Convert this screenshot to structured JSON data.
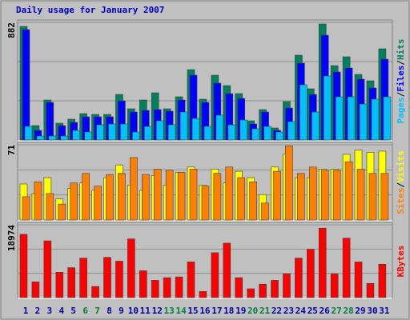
{
  "chart_data": [
    {
      "type": "bar",
      "title": "Daily usage for January 2007",
      "ylim": [
        0,
        882
      ],
      "yticks": [
        882
      ],
      "legend_separator": "/",
      "series": [
        {
          "name": "Pages",
          "color": "#00C0FF",
          "values": [
            102,
            30,
            30,
            30,
            72,
            60,
            114,
            120,
            120,
            60,
            102,
            144,
            114,
            210,
            162,
            102,
            186,
            114,
            150,
            84,
            102,
            60,
            138,
            414,
            210,
            480,
            324,
            324,
            270,
            306,
            324
          ]
        },
        {
          "name": "Files",
          "color": "#0000FF",
          "values": [
            828,
            72,
            282,
            108,
            132,
            174,
            174,
            174,
            294,
            210,
            222,
            228,
            216,
            300,
            486,
            282,
            426,
            348,
            312,
            120,
            210,
            72,
            240,
            576,
            342,
            786,
            510,
            540,
            456,
            390,
            606
          ]
        },
        {
          "name": "Hits",
          "color": "#00805C",
          "values": [
            852,
            108,
            300,
            126,
            156,
            198,
            192,
            192,
            342,
            234,
            300,
            354,
            234,
            324,
            528,
            306,
            486,
            408,
            348,
            144,
            228,
            90,
            288,
            636,
            384,
            870,
            558,
            624,
            492,
            444,
            684
          ]
        }
      ]
    },
    {
      "type": "bar",
      "ylim": [
        0,
        71
      ],
      "yticks": [
        71
      ],
      "legend_separator": "/",
      "series": [
        {
          "name": "Sites",
          "color": "#FF8000",
          "values": [
            22,
            36,
            25,
            15,
            35,
            44,
            32,
            43,
            44,
            59,
            43,
            48,
            47,
            45,
            48,
            32,
            44,
            50,
            40,
            36,
            16,
            46,
            70,
            44,
            50,
            47,
            47,
            55,
            48,
            44,
            44
          ]
        },
        {
          "name": "Visits",
          "color": "#FFFF00",
          "values": [
            34,
            25,
            40,
            20,
            30,
            35,
            28,
            40,
            52,
            33,
            28,
            42,
            33,
            45,
            50,
            33,
            48,
            35,
            46,
            40,
            24,
            50,
            62,
            40,
            40,
            48,
            48,
            62,
            66,
            64,
            65
          ]
        }
      ]
    },
    {
      "type": "bar",
      "ylim": [
        0,
        18974
      ],
      "yticks": [
        18974
      ],
      "categories": [
        "1",
        "2",
        "3",
        "4",
        "5",
        "6",
        "7",
        "8",
        "9",
        "10",
        "11",
        "12",
        "13",
        "14",
        "15",
        "16",
        "17",
        "18",
        "19",
        "20",
        "21",
        "22",
        "23",
        "24",
        "25",
        "26",
        "27",
        "28",
        "29",
        "30",
        "31"
      ],
      "category_colors": [
        "#0000A0",
        "#0000A0",
        "#0000A0",
        "#0000A0",
        "#0000A0",
        "#008040",
        "#008040",
        "#0000A0",
        "#0000A0",
        "#0000A0",
        "#0000A0",
        "#0000A0",
        "#008040",
        "#008040",
        "#0000A0",
        "#0000A0",
        "#0000A0",
        "#0000A0",
        "#0000A0",
        "#008040",
        "#008040",
        "#0000A0",
        "#0000A0",
        "#0000A0",
        "#0000A0",
        "#0000A0",
        "#008040",
        "#008040",
        "#0000A0",
        "#0000A0",
        "#0000A0"
      ],
      "series": [
        {
          "name": "KBytes",
          "color": "#FF0000",
          "values": [
            16500,
            4100,
            14800,
            6600,
            7800,
            10300,
            2900,
            10500,
            9500,
            15300,
            7000,
            4500,
            5200,
            5400,
            9300,
            1600,
            11700,
            14200,
            5200,
            2300,
            3500,
            4500,
            6200,
            10300,
            12600,
            18100,
            6200,
            15500,
            9300,
            3700,
            8700
          ]
        }
      ]
    }
  ]
}
